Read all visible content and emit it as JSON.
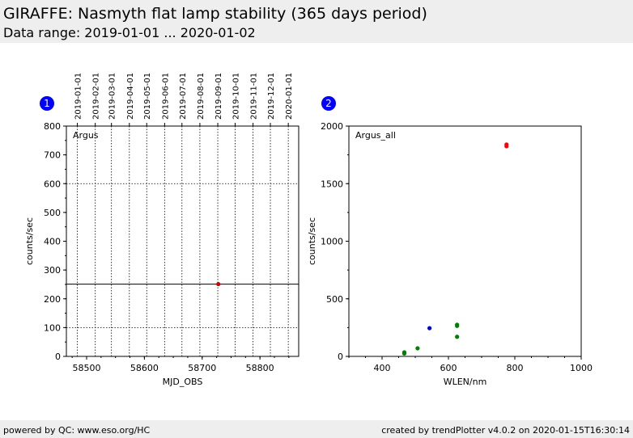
{
  "header": {
    "title": "GIRAFFE: Nasmyth flat lamp stability (365 days period)",
    "subtitle": "Data range: 2019-01-01 ... 2020-01-02"
  },
  "footer": {
    "left": "powered by QC: www.eso.org/HC",
    "right": "created by trendPlotter v4.0.2 on 2020-01-15T16:30:14"
  },
  "colors": {
    "red": "#ff0000",
    "dark_red": "#cc0000",
    "green": "#008000",
    "blue": "#0000cc",
    "badge": "#0000ff"
  },
  "chart_data": [
    {
      "type": "scatter",
      "badge": "1",
      "panel_label": "Argus",
      "xlabel": "MJD_OBS",
      "ylabel": "counts/sec",
      "xlim": [
        58465,
        58867
      ],
      "ylim": [
        0,
        800
      ],
      "x_ticks": [
        58500,
        58600,
        58700,
        58800
      ],
      "y_ticks": [
        0,
        100,
        200,
        300,
        400,
        500,
        600,
        700,
        800
      ],
      "top_date_ticks": [
        {
          "label": "2019-01-01",
          "mjd": 58484
        },
        {
          "label": "2019-02-01",
          "mjd": 58515
        },
        {
          "label": "2019-03-01",
          "mjd": 58543
        },
        {
          "label": "2019-04-01",
          "mjd": 58574
        },
        {
          "label": "2019-05-01",
          "mjd": 58604
        },
        {
          "label": "2019-06-01",
          "mjd": 58635
        },
        {
          "label": "2019-07-01",
          "mjd": 58665
        },
        {
          "label": "2019-08-01",
          "mjd": 58696
        },
        {
          "label": "2019-09-01",
          "mjd": 58727
        },
        {
          "label": "2019-10-01",
          "mjd": 58757
        },
        {
          "label": "2019-11-01",
          "mjd": 58788
        },
        {
          "label": "2019-12-01",
          "mjd": 58818
        },
        {
          "label": "2020-01-01",
          "mjd": 58849
        }
      ],
      "reference_line": 251,
      "dotted_lines_y": [
        100,
        600
      ],
      "points": [
        {
          "x": 58728,
          "y": 251,
          "color": "dark_red"
        }
      ]
    },
    {
      "type": "scatter",
      "badge": "2",
      "panel_label": "Argus_all",
      "xlabel": "WLEN/nm",
      "ylabel": "counts/sec",
      "xlim": [
        300,
        1000
      ],
      "ylim": [
        0,
        2000
      ],
      "x_ticks": [
        400,
        600,
        800,
        1000
      ],
      "y_ticks": [
        0,
        500,
        1000,
        1500,
        2000
      ],
      "points": [
        {
          "x": 775,
          "y": 1840,
          "color": "red"
        },
        {
          "x": 775,
          "y": 1825,
          "color": "red"
        },
        {
          "x": 543,
          "y": 245,
          "color": "blue"
        },
        {
          "x": 626,
          "y": 275,
          "color": "green"
        },
        {
          "x": 626,
          "y": 265,
          "color": "green"
        },
        {
          "x": 626,
          "y": 170,
          "color": "green"
        },
        {
          "x": 507,
          "y": 70,
          "color": "green"
        },
        {
          "x": 467,
          "y": 35,
          "color": "green"
        },
        {
          "x": 467,
          "y": 25,
          "color": "green"
        }
      ]
    }
  ]
}
